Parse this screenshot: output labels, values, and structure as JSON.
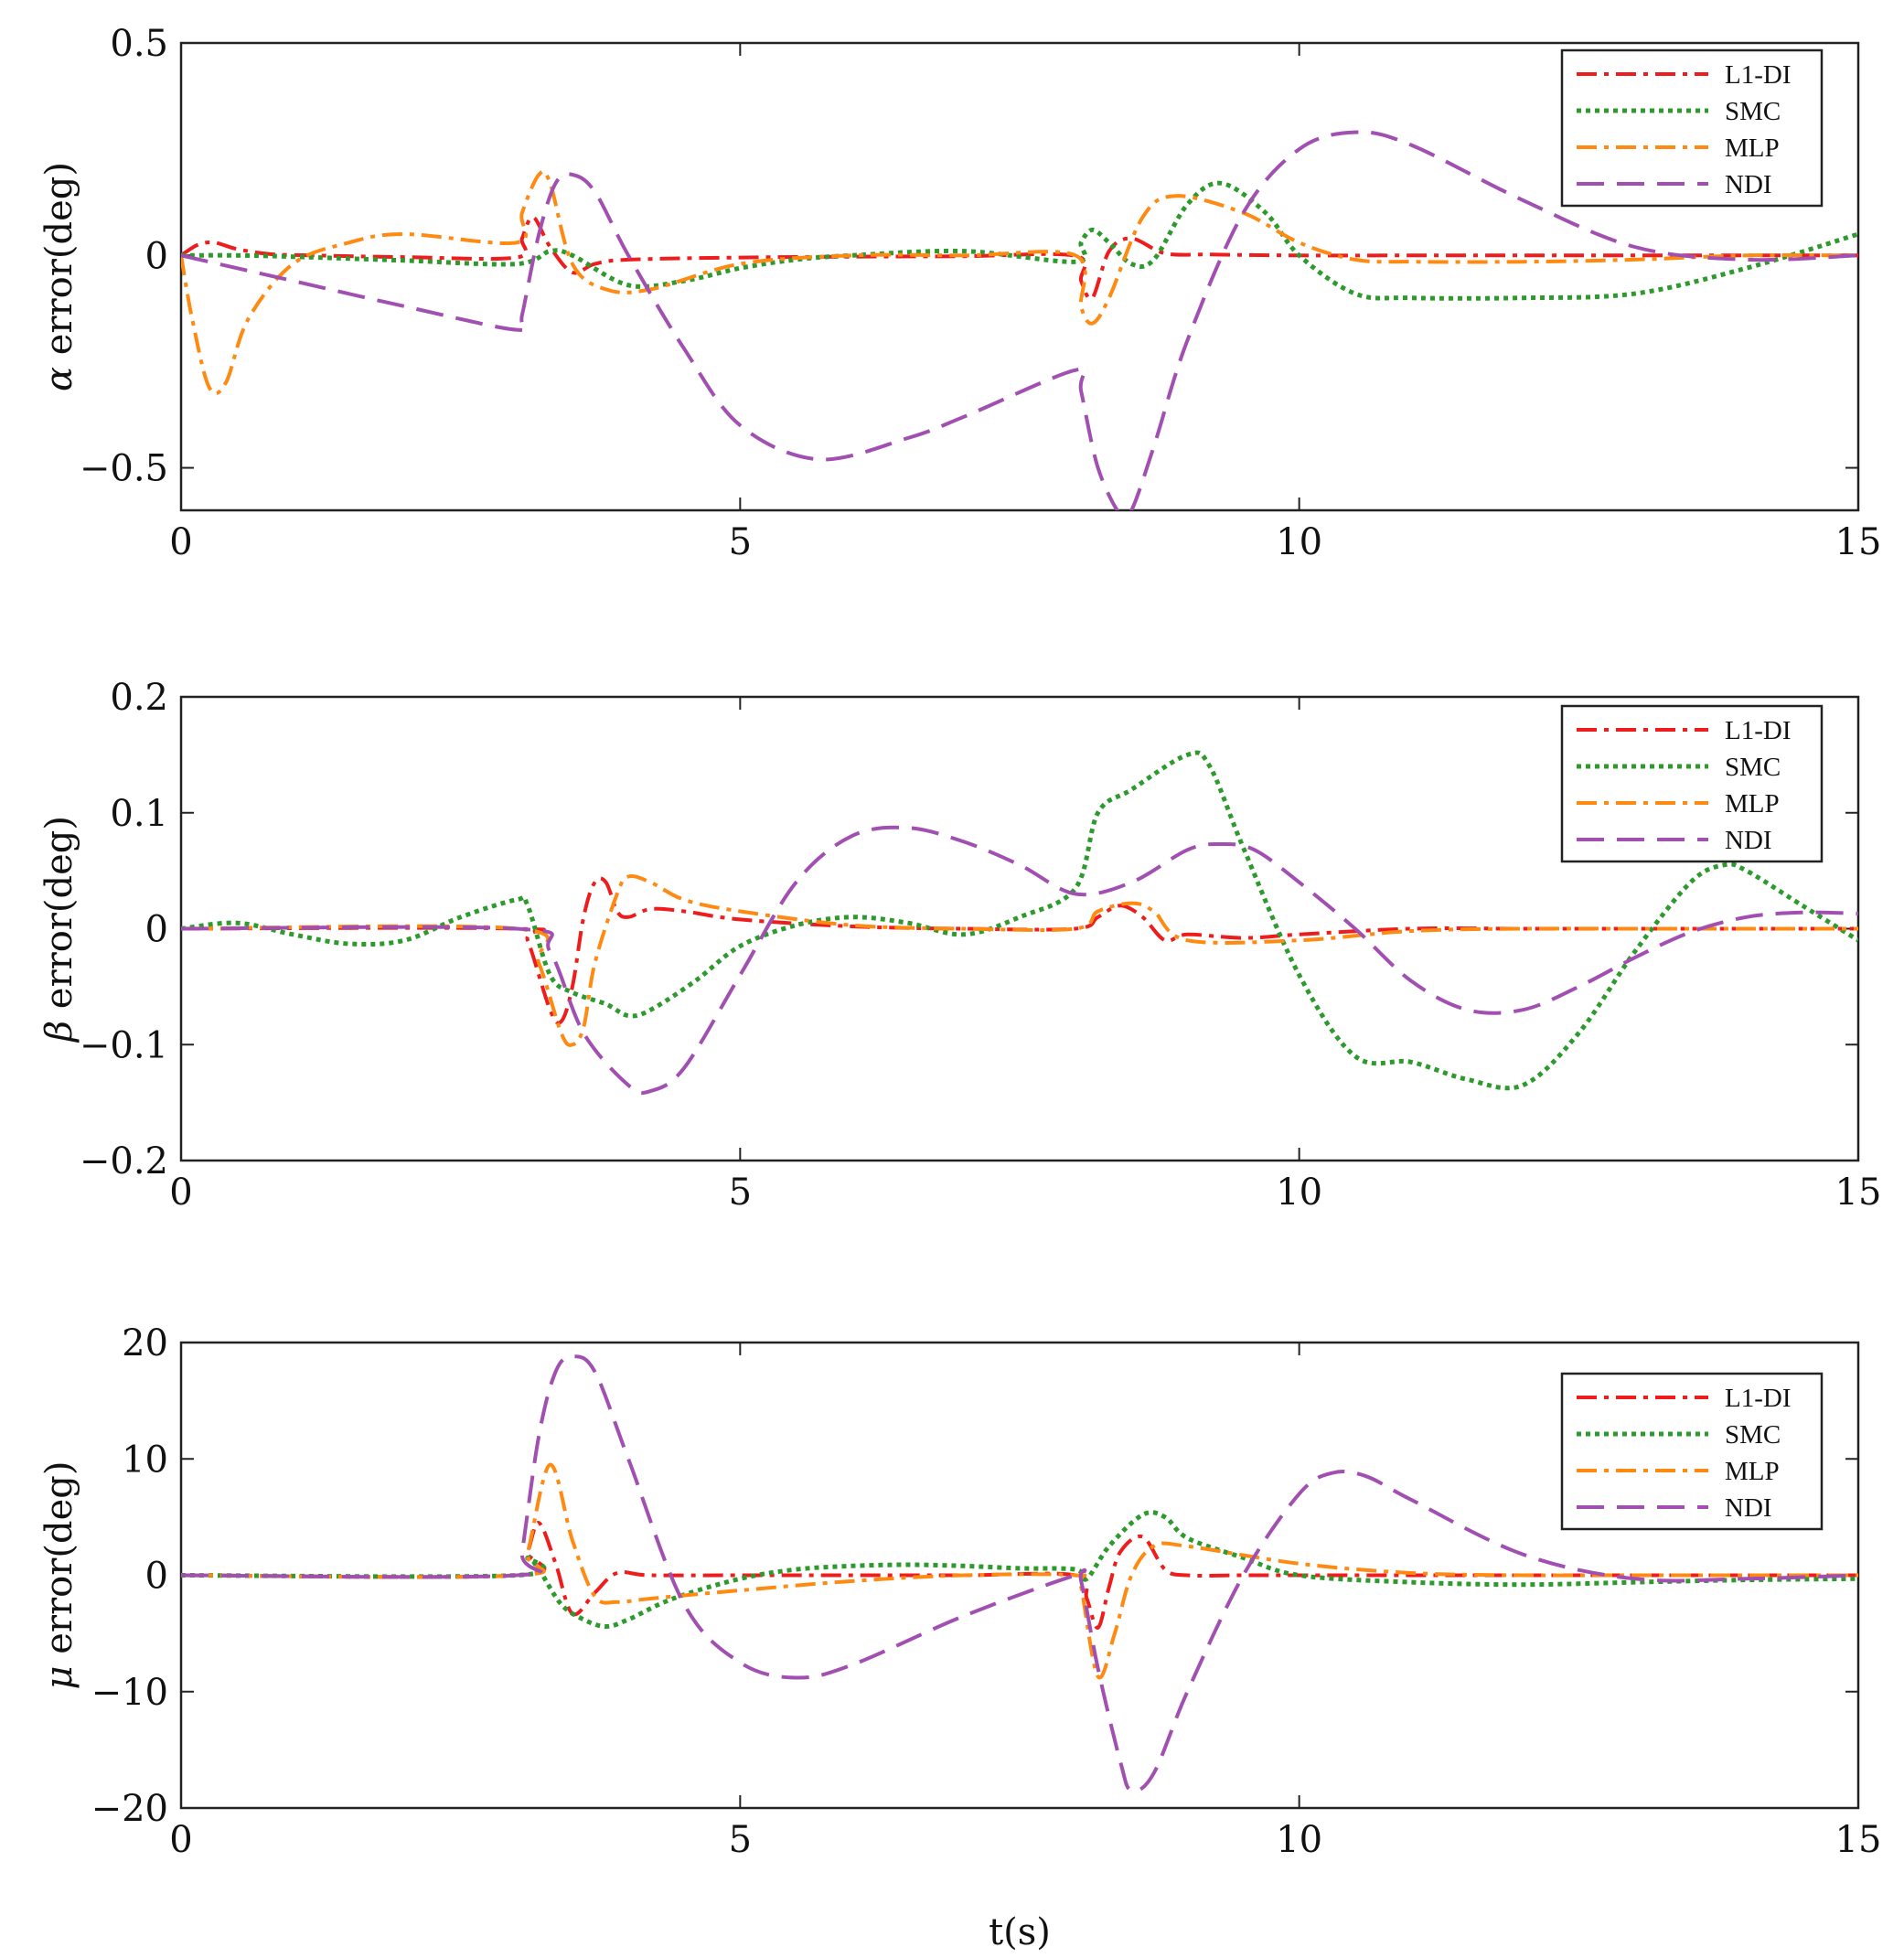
{
  "chart_data": {
    "type": "line",
    "shared_xlabel": "t(s)",
    "series_styles": [
      {
        "name": "L1-DI",
        "color": "#ee1c1c",
        "dash": "22 8 5 8",
        "width": 4
      },
      {
        "name": "SMC",
        "color": "#2e9a2e",
        "dash": "5 5",
        "width": 5
      },
      {
        "name": "MLP",
        "color": "#ff8a12",
        "dash": "22 8 5 8",
        "width": 4
      },
      {
        "name": "NDI",
        "color": "#a14fb0",
        "dash": "30 14",
        "width": 4
      }
    ],
    "panels": [
      {
        "name": "alpha",
        "ylabel_symbol": "α",
        "ylabel_text": " error(deg)",
        "xlim": [
          0,
          15
        ],
        "ylim": [
          -0.6,
          0.5
        ],
        "xticks": [
          0,
          5,
          10,
          15
        ],
        "xtick_labels": [
          "0",
          "5",
          "10",
          "15"
        ],
        "yticks": [
          -0.5,
          0,
          0.5
        ],
        "ytick_labels": [
          "−0.5",
          "0",
          "0.5"
        ],
        "legend": [
          "L1-DI",
          "SMC",
          "MLP",
          "NDI"
        ],
        "series": [
          {
            "name": "L1-DI",
            "x": [
              0,
              0.15,
              0.3,
              0.5,
              0.8,
              1.2,
              2,
              3,
              3.05,
              3.15,
              3.3,
              3.5,
              3.7,
              4,
              5,
              6,
              7,
              8,
              8.05,
              8.15,
              8.3,
              8.5,
              8.8,
              9.2,
              10,
              11,
              12,
              13,
              14,
              15
            ],
            "y": [
              0,
              0.025,
              0.03,
              0.015,
              0.003,
              0,
              -0.004,
              -0.005,
              0.04,
              0.09,
              0.02,
              -0.04,
              -0.02,
              -0.01,
              -0.005,
              -0.003,
              -0.002,
              -0.001,
              -0.06,
              -0.1,
              0.01,
              0.04,
              0.005,
              0.002,
              0,
              0,
              0,
              0,
              0,
              0
            ]
          },
          {
            "name": "SMC",
            "x": [
              0,
              0.5,
              1,
              2,
              3,
              3.3,
              3.5,
              4,
              4.5,
              5,
              5.5,
              6,
              7,
              8,
              8.05,
              8.15,
              8.3,
              8.5,
              8.7,
              9,
              9.3,
              9.7,
              10,
              10.5,
              11,
              12,
              13,
              14,
              15
            ],
            "y": [
              0,
              0,
              -0.003,
              -0.012,
              -0.02,
              0.01,
              0,
              -0.07,
              -0.06,
              -0.03,
              -0.01,
              0,
              0.01,
              -0.015,
              0.03,
              0.06,
              0.03,
              -0.02,
              -0.01,
              0.12,
              0.17,
              0.1,
              0,
              -0.09,
              -0.1,
              -0.1,
              -0.09,
              -0.03,
              0.05
            ]
          },
          {
            "name": "MLP",
            "x": [
              0,
              0.1,
              0.25,
              0.4,
              0.6,
              1,
              1.5,
              2,
              3,
              3.05,
              3.2,
              3.3,
              3.5,
              3.8,
              4.2,
              5,
              6,
              7,
              8,
              8.05,
              8.15,
              8.3,
              8.6,
              8.9,
              9.5,
              10,
              10.5,
              11,
              12,
              13,
              14,
              15
            ],
            "y": [
              0,
              -0.15,
              -0.31,
              -0.3,
              -0.15,
              -0.02,
              0.03,
              0.05,
              0.03,
              0.1,
              0.19,
              0.17,
              -0.02,
              -0.08,
              -0.08,
              -0.02,
              0,
              0,
              0,
              -0.12,
              -0.16,
              -0.1,
              0.09,
              0.14,
              0.1,
              0.03,
              -0.01,
              -0.015,
              -0.015,
              -0.01,
              0,
              0
            ]
          },
          {
            "name": "NDI",
            "x": [
              0,
              0.5,
              1,
              2,
              3,
              3.05,
              3.2,
              3.35,
              3.5,
              3.7,
              4,
              4.5,
              5,
              5.7,
              6.5,
              7,
              8,
              8.05,
              8.2,
              8.4,
              8.5,
              8.7,
              9,
              9.5,
              10,
              10.5,
              11,
              12,
              13,
              14,
              15
            ],
            "y": [
              0,
              -0.03,
              -0.06,
              -0.12,
              -0.175,
              -0.14,
              0.05,
              0.17,
              0.19,
              0.15,
              0,
              -0.22,
              -0.4,
              -0.48,
              -0.43,
              -0.38,
              -0.27,
              -0.32,
              -0.5,
              -0.61,
              -0.6,
              -0.45,
              -0.2,
              0.1,
              0.25,
              0.29,
              0.26,
              0.13,
              0.02,
              -0.01,
              0
            ]
          }
        ]
      },
      {
        "name": "beta",
        "ylabel_symbol": "β",
        "ylabel_text": " error(deg)",
        "xlim": [
          0,
          15
        ],
        "ylim": [
          -0.2,
          0.2
        ],
        "xticks": [
          0,
          5,
          10,
          15
        ],
        "xtick_labels": [
          "0",
          "5",
          "10",
          "15"
        ],
        "yticks": [
          -0.2,
          -0.1,
          0,
          0.1,
          0.2
        ],
        "ytick_labels": [
          "−0.2",
          "−0.1",
          "0",
          "0.1",
          "0.2"
        ],
        "legend": [
          "L1-DI",
          "SMC",
          "MLP",
          "NDI"
        ],
        "series": [
          {
            "name": "L1-DI",
            "x": [
              0,
              3,
              3.1,
              3.3,
              3.4,
              3.5,
              3.6,
              3.7,
              3.8,
              3.9,
              4,
              4.2,
              4.5,
              5,
              6,
              7,
              8,
              8.2,
              8.4,
              8.6,
              8.8,
              9,
              9.5,
              10,
              11,
              12,
              13,
              14,
              15
            ],
            "y": [
              0,
              0,
              -0.01,
              -0.07,
              -0.08,
              -0.05,
              0.01,
              0.04,
              0.04,
              0.015,
              0.01,
              0.017,
              0.015,
              0.008,
              0.002,
              0,
              0,
              0.01,
              0.02,
              0.01,
              -0.01,
              -0.005,
              -0.008,
              -0.005,
              0,
              0,
              0,
              0,
              0
            ]
          },
          {
            "name": "SMC",
            "x": [
              0,
              0.5,
              1,
              1.5,
              2,
              2.5,
              3,
              3.1,
              3.3,
              3.5,
              3.8,
              4,
              4.2,
              4.6,
              5,
              5.5,
              6,
              6.5,
              7,
              7.5,
              8,
              8.2,
              8.5,
              9,
              9.2,
              9.5,
              10,
              10.5,
              11,
              11.5,
              12,
              12.5,
              13,
              13.5,
              13.8,
              14,
              14.5,
              15
            ],
            "y": [
              0,
              0.005,
              -0.005,
              -0.013,
              -0.01,
              0.01,
              0.025,
              0.02,
              -0.04,
              -0.055,
              -0.065,
              -0.075,
              -0.07,
              -0.045,
              -0.015,
              0.003,
              0.01,
              0.005,
              -0.005,
              0.01,
              0.035,
              0.1,
              0.12,
              0.15,
              0.14,
              0.07,
              -0.04,
              -0.11,
              -0.115,
              -0.13,
              -0.135,
              -0.09,
              -0.02,
              0.04,
              0.055,
              0.05,
              0.02,
              -0.01
            ]
          },
          {
            "name": "MLP",
            "x": [
              0,
              3,
              3.2,
              3.4,
              3.5,
              3.6,
              3.7,
              3.9,
              4,
              4.2,
              4.5,
              5,
              6,
              7,
              8,
              8.2,
              8.5,
              8.7,
              9,
              10,
              11,
              12,
              13,
              14,
              15
            ],
            "y": [
              0,
              0,
              -0.03,
              -0.09,
              -0.1,
              -0.085,
              -0.03,
              0.03,
              0.045,
              0.04,
              0.025,
              0.015,
              0.003,
              0,
              0,
              0.015,
              0.022,
              0.015,
              -0.01,
              -0.01,
              -0.002,
              0,
              0,
              0,
              0
            ]
          },
          {
            "name": "NDI",
            "x": [
              0,
              3,
              3.3,
              3.6,
              4,
              4.2,
              4.5,
              5,
              5.5,
              6,
              6.5,
              7,
              7.5,
              8,
              8.5,
              9,
              9.3,
              9.6,
              10,
              10.5,
              11,
              11.5,
              12,
              12.5,
              13,
              13.5,
              14,
              14.5,
              15
            ],
            "y": [
              0,
              0,
              -0.02,
              -0.09,
              -0.135,
              -0.14,
              -0.12,
              -0.04,
              0.04,
              0.08,
              0.087,
              0.075,
              0.055,
              0.03,
              0.04,
              0.068,
              0.073,
              0.068,
              0.04,
              0,
              -0.045,
              -0.07,
              -0.07,
              -0.05,
              -0.025,
              -0.003,
              0.01,
              0.014,
              0.013
            ]
          }
        ]
      },
      {
        "name": "mu",
        "ylabel_symbol": "μ",
        "ylabel_text": " error(deg)",
        "xlim": [
          0,
          15
        ],
        "ylim": [
          -20,
          20
        ],
        "xticks": [
          0,
          5,
          10,
          15
        ],
        "xtick_labels": [
          "0",
          "5",
          "10",
          "15"
        ],
        "yticks": [
          -20,
          -10,
          0,
          10,
          20
        ],
        "ytick_labels": [
          "−20",
          "−10",
          "0",
          "10",
          "20"
        ],
        "legend": [
          "L1-DI",
          "SMC",
          "MLP",
          "NDI"
        ],
        "series": [
          {
            "name": "L1-DI",
            "x": [
              0,
              3,
              3.1,
              3.2,
              3.35,
              3.5,
              3.7,
              3.9,
              4.2,
              5,
              6,
              7,
              8,
              8.1,
              8.2,
              8.3,
              8.4,
              8.6,
              8.8,
              9,
              9.5,
              10,
              12,
              14,
              15
            ],
            "y": [
              0,
              0,
              2,
              4.5,
              1,
              -3.3,
              -1.5,
              0.2,
              0,
              0,
              0,
              0,
              0,
              -2,
              -4.5,
              -1,
              2,
              3.3,
              0.5,
              0,
              0,
              0,
              0,
              0,
              0
            ]
          },
          {
            "name": "SMC",
            "x": [
              0,
              3,
              3.1,
              3.2,
              3.4,
              3.6,
              3.8,
              4,
              4.4,
              5,
              5.5,
              6,
              6.5,
              7,
              7.5,
              8,
              8.1,
              8.3,
              8.6,
              8.8,
              9,
              9.5,
              10,
              11,
              12,
              13,
              14,
              15
            ],
            "y": [
              0,
              0,
              1.5,
              0.5,
              -2.5,
              -3.8,
              -4.4,
              -3.8,
              -2,
              -0.3,
              0.5,
              0.8,
              0.9,
              0.8,
              0.6,
              0.5,
              -0.3,
              2.5,
              5.2,
              5,
              3.2,
              1.5,
              0,
              -0.6,
              -0.8,
              -0.6,
              -0.4,
              -0.3
            ]
          },
          {
            "name": "MLP",
            "x": [
              0,
              3,
              3.1,
              3.3,
              3.5,
              3.7,
              3.9,
              4.2,
              5,
              6,
              7,
              8,
              8.05,
              8.2,
              8.35,
              8.5,
              8.7,
              9,
              10,
              11,
              12,
              13,
              14,
              15
            ],
            "y": [
              0,
              0,
              2,
              9.5,
              3,
              -1.8,
              -2.3,
              -2,
              -1.3,
              -0.5,
              0,
              0,
              -1,
              -8.7,
              -5,
              0,
              2.5,
              2.5,
              1,
              0.2,
              0,
              0,
              0,
              0
            ]
          },
          {
            "name": "NDI",
            "x": [
              0,
              3,
              3.05,
              3.2,
              3.35,
              3.5,
              3.7,
              4,
              4.5,
              5,
              5.5,
              6,
              7,
              8,
              8.05,
              8.2,
              8.4,
              8.5,
              8.7,
              9,
              9.5,
              10,
              10.3,
              10.6,
              11,
              12,
              13,
              14,
              15
            ],
            "y": [
              0,
              0,
              2,
              12,
              17.5,
              18.8,
              17.5,
              10,
              -2.5,
              -7.5,
              -8.8,
              -7.7,
              -3.5,
              0,
              -0.5,
              -8,
              -16,
              -18.5,
              -17,
              -10,
              0,
              7,
              8.8,
              8.5,
              6.5,
              1.8,
              -0.3,
              -0.3,
              0
            ]
          }
        ]
      }
    ]
  }
}
